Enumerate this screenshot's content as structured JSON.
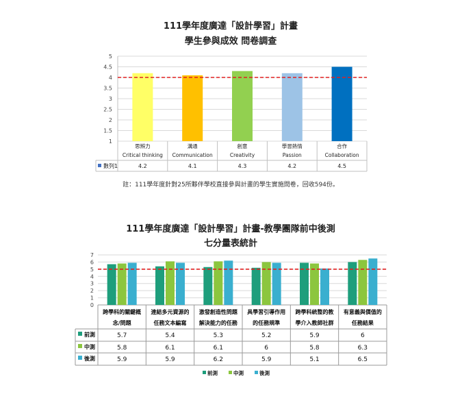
{
  "chart_data": [
    {
      "type": "bar",
      "title": "111學年度廣達「設計學習」計畫",
      "subtitle": "學生參與成效 問卷調查",
      "categories": [
        {
          "zh": "思辨力",
          "en": "Critical thinking"
        },
        {
          "zh": "溝通",
          "en": "Communication"
        },
        {
          "zh": "創意",
          "en": "Creativity"
        },
        {
          "zh": "學習熱情",
          "en": "Passion"
        },
        {
          "zh": "合作",
          "en": "Collaboration"
        }
      ],
      "series": [
        {
          "name": "數列1",
          "values": [
            4.2,
            4.1,
            4.3,
            4.2,
            4.5
          ],
          "value_labels": [
            "4.2",
            "4.1",
            "4.3",
            "4.2",
            "4.5"
          ]
        }
      ],
      "colors": [
        "#ffff66",
        "#ffc000",
        "#92d050",
        "#9dc3e6",
        "#0070c0"
      ],
      "ylim": [
        1,
        5
      ],
      "yticks": [
        "1",
        "1.5",
        "2",
        "2.5",
        "3",
        "3.5",
        "4",
        "4.5",
        "5"
      ],
      "reference_line": 4,
      "reference_color": "#e02020",
      "grid": true,
      "legend": "data-table"
    },
    {
      "type": "bar",
      "title": "111學年度廣達「設計學習」計畫-教學團隊前中後測",
      "subtitle": "七分量表統計",
      "categories": [
        [
          "跨學科的關鍵概",
          "念/問題"
        ],
        [
          "連結多元資源的",
          "任務文本編寫"
        ],
        [
          "激發創造性問題",
          "解決能力的任務"
        ],
        [
          "具學習引導作用",
          "的任務規準"
        ],
        [
          "跨學科統整的教",
          "學介入教師社群"
        ],
        [
          "有意義與價值的",
          "任務結果"
        ]
      ],
      "series": [
        {
          "name": "前測",
          "color": "#1e9e7c",
          "values": [
            5.7,
            5.4,
            5.3,
            5.2,
            5.9,
            6
          ],
          "value_labels": [
            "5.7",
            "5.4",
            "5.3",
            "5.2",
            "5.9",
            "6"
          ]
        },
        {
          "name": "中測",
          "color": "#8cc63e",
          "values": [
            5.8,
            6.1,
            6.1,
            6,
            5.8,
            6.3
          ],
          "value_labels": [
            "5.8",
            "6.1",
            "6.1",
            "6",
            "5.8",
            "6.3"
          ]
        },
        {
          "name": "後測",
          "color": "#3aafcf",
          "values": [
            5.9,
            5.9,
            6.2,
            5.9,
            5.1,
            6.5
          ],
          "value_labels": [
            "5.9",
            "5.9",
            "6.2",
            "5.9",
            "5.1",
            "6.5"
          ]
        }
      ],
      "ylim": [
        0,
        7
      ],
      "yticks": [
        "0",
        "1",
        "2",
        "3",
        "4",
        "5",
        "6",
        "7"
      ],
      "reference_line": 5,
      "reference_color": "#e02020",
      "grid": true,
      "legend": "bottom"
    }
  ],
  "note": "註：111學年度針對25所夥伴學校直接參與計畫的學生實施問卷，回收594份。"
}
